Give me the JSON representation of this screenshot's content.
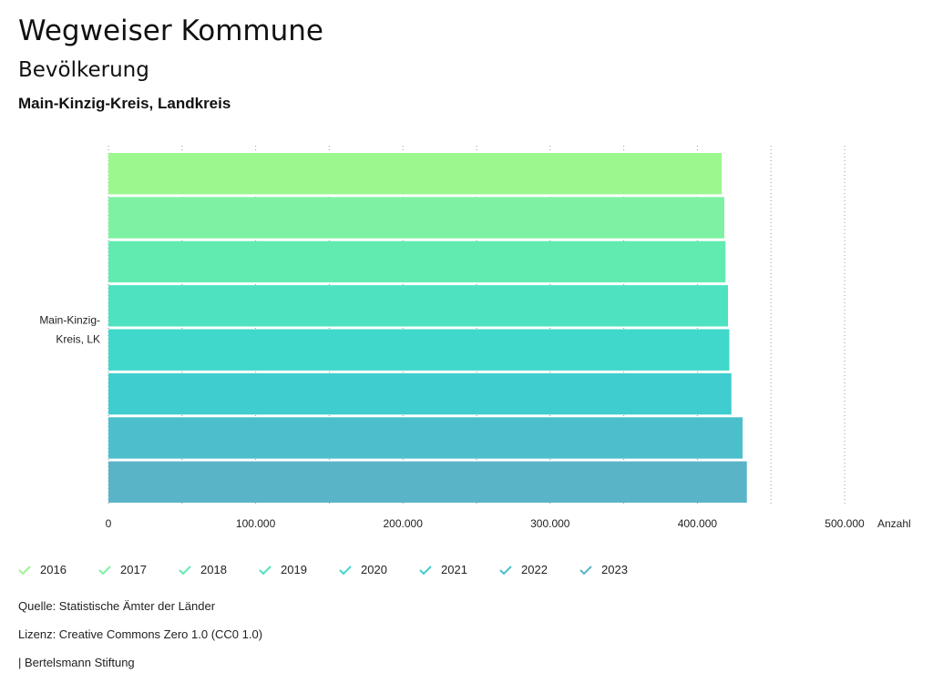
{
  "header": {
    "title": "Wegweiser Kommune",
    "subtitle": "Bevölkerung",
    "region": "Main-Kinzig-Kreis, Landkreis"
  },
  "chart_data": {
    "type": "bar",
    "orientation": "horizontal",
    "categories": [
      "Main-Kinzig-Kreis, LK"
    ],
    "category_label_lines": [
      "Main-Kinzig-",
      "Kreis, LK"
    ],
    "series": [
      {
        "name": "2016",
        "color": "#9cf78f",
        "values": [
          416500
        ]
      },
      {
        "name": "2017",
        "color": "#7ef2a2",
        "values": [
          418300
        ]
      },
      {
        "name": "2018",
        "color": "#62ebb0",
        "values": [
          419100
        ]
      },
      {
        "name": "2019",
        "color": "#4fe2c0",
        "values": [
          420800
        ]
      },
      {
        "name": "2020",
        "color": "#40d8cb",
        "values": [
          421700
        ]
      },
      {
        "name": "2021",
        "color": "#40cdcf",
        "values": [
          423100
        ]
      },
      {
        "name": "2022",
        "color": "#4cbfcc",
        "values": [
          430700
        ]
      },
      {
        "name": "2023",
        "color": "#5ab4c8",
        "values": [
          433600
        ]
      }
    ],
    "xlim": [
      0,
      500000
    ],
    "xticks": [
      0,
      100000,
      200000,
      300000,
      400000,
      500000
    ],
    "xtick_labels": [
      "0",
      "100.000",
      "200.000",
      "300.000",
      "400.000",
      "500.000"
    ],
    "xlabel": "Anzahl",
    "legend_position": "bottom-left"
  },
  "footer": {
    "source": "Quelle: Statistische Ämter der Länder",
    "license": "Lizenz: Creative Commons Zero 1.0 (CC0 1.0)",
    "credit": "| Bertelsmann Stiftung"
  }
}
